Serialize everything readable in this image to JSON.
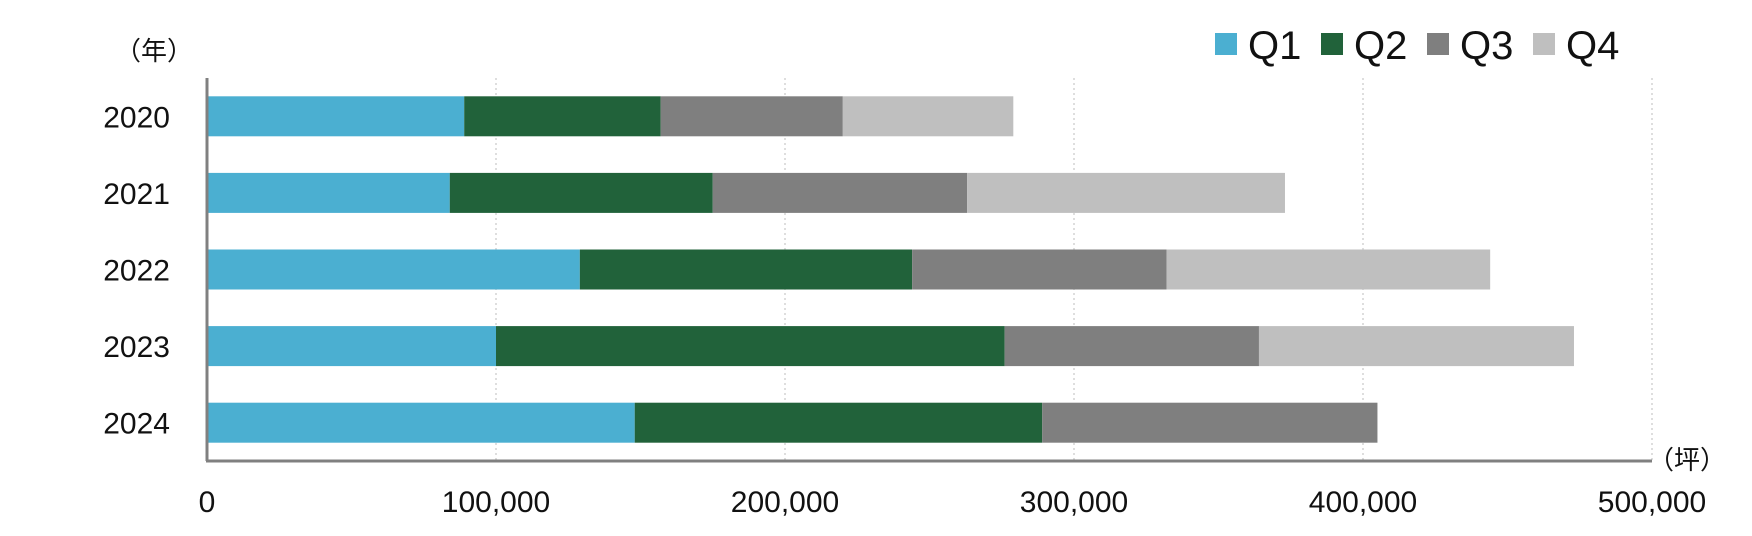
{
  "chart_data": {
    "type": "bar",
    "orientation": "horizontal",
    "stacked": true,
    "categories": [
      "2020",
      "2021",
      "2022",
      "2023",
      "2024"
    ],
    "series": [
      {
        "name": "Q1",
        "color": "#4bafd1",
        "values": [
          89000,
          84000,
          129000,
          100000,
          148000
        ]
      },
      {
        "name": "Q2",
        "color": "#21623a",
        "values": [
          68000,
          91000,
          115000,
          176000,
          141000
        ]
      },
      {
        "name": "Q3",
        "color": "#7f7f7f",
        "values": [
          63000,
          88000,
          88000,
          88000,
          116000
        ]
      },
      {
        "name": "Q4",
        "color": "#bfbfbf",
        "values": [
          59000,
          110000,
          112000,
          109000,
          0
        ]
      }
    ],
    "xlim": [
      0,
      500000
    ],
    "xticks": [
      "0",
      "100,000",
      "200,000",
      "300,000",
      "400,000",
      "500,000"
    ],
    "xtick_values": [
      0,
      100000,
      200000,
      300000,
      400000,
      500000
    ],
    "x_unit_label": "（坪）",
    "y_unit_label": "（年）",
    "grid": "vertical dotted",
    "legend_position": "top-right"
  }
}
